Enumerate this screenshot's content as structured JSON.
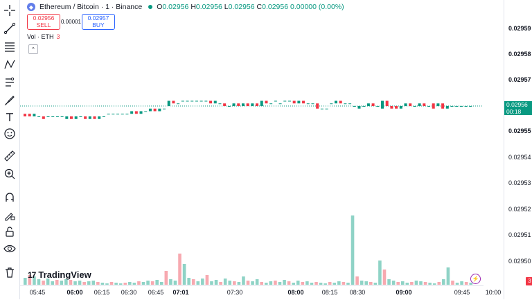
{
  "header": {
    "symbol": "Ethereum / Bitcoin · 1 · Binance",
    "ohlc": {
      "o_label": "O",
      "o": "0.02956",
      "h_label": "H",
      "h": "0.02956",
      "l_label": "L",
      "l": "0.02956",
      "c_label": "C",
      "c": "0.02956",
      "change": "0.00000 (0.00%)"
    }
  },
  "trade": {
    "sell_price": "0.02956",
    "sell_label": "SELL",
    "spread": "0.00001",
    "buy_price": "0.02957",
    "buy_label": "BUY"
  },
  "volume": {
    "label": "Vol · ETH",
    "value": "3"
  },
  "price_axis": {
    "labels": [
      "0.02959",
      "0.02958",
      "0.02957",
      "0.02955",
      "0.02954",
      "0.02953",
      "0.02952",
      "0.02951",
      "0.02950"
    ],
    "current_price": "0.02956",
    "countdown": "00:18"
  },
  "time_axis": {
    "labels": [
      "05:45",
      "06:00",
      "06:15",
      "06:30",
      "06:45",
      "07:01",
      "07:30",
      "08:00",
      "08:15",
      "08:30",
      "09:00",
      "09:45",
      "10:00"
    ]
  },
  "logo": {
    "text": "TradingView"
  },
  "badge": {
    "count": "3"
  },
  "colors": {
    "up": "#089981",
    "down": "#f23645",
    "up_vol": "#8fd3c6",
    "down_vol": "#f7a9b0"
  },
  "tools": [
    "crosshair-icon",
    "trend-line-icon",
    "fib-icon",
    "pattern-icon",
    "projection-icon",
    "brush-icon",
    "text-icon",
    "emoji-icon",
    "ruler-icon",
    "zoom-in-icon",
    "magnet-icon",
    "lock-draw-icon",
    "lock-icon",
    "eye-icon",
    "trash-icon"
  ],
  "chart_data": {
    "type": "candlestick",
    "x_labels": [
      "05:45",
      "06:00",
      "06:15",
      "06:30",
      "06:45",
      "07:01",
      "07:30",
      "08:00",
      "08:15",
      "08:30",
      "09:00",
      "09:45",
      "10:00"
    ],
    "price_range": [
      0.0295,
      0.02959
    ],
    "current_price": 0.02956
  }
}
